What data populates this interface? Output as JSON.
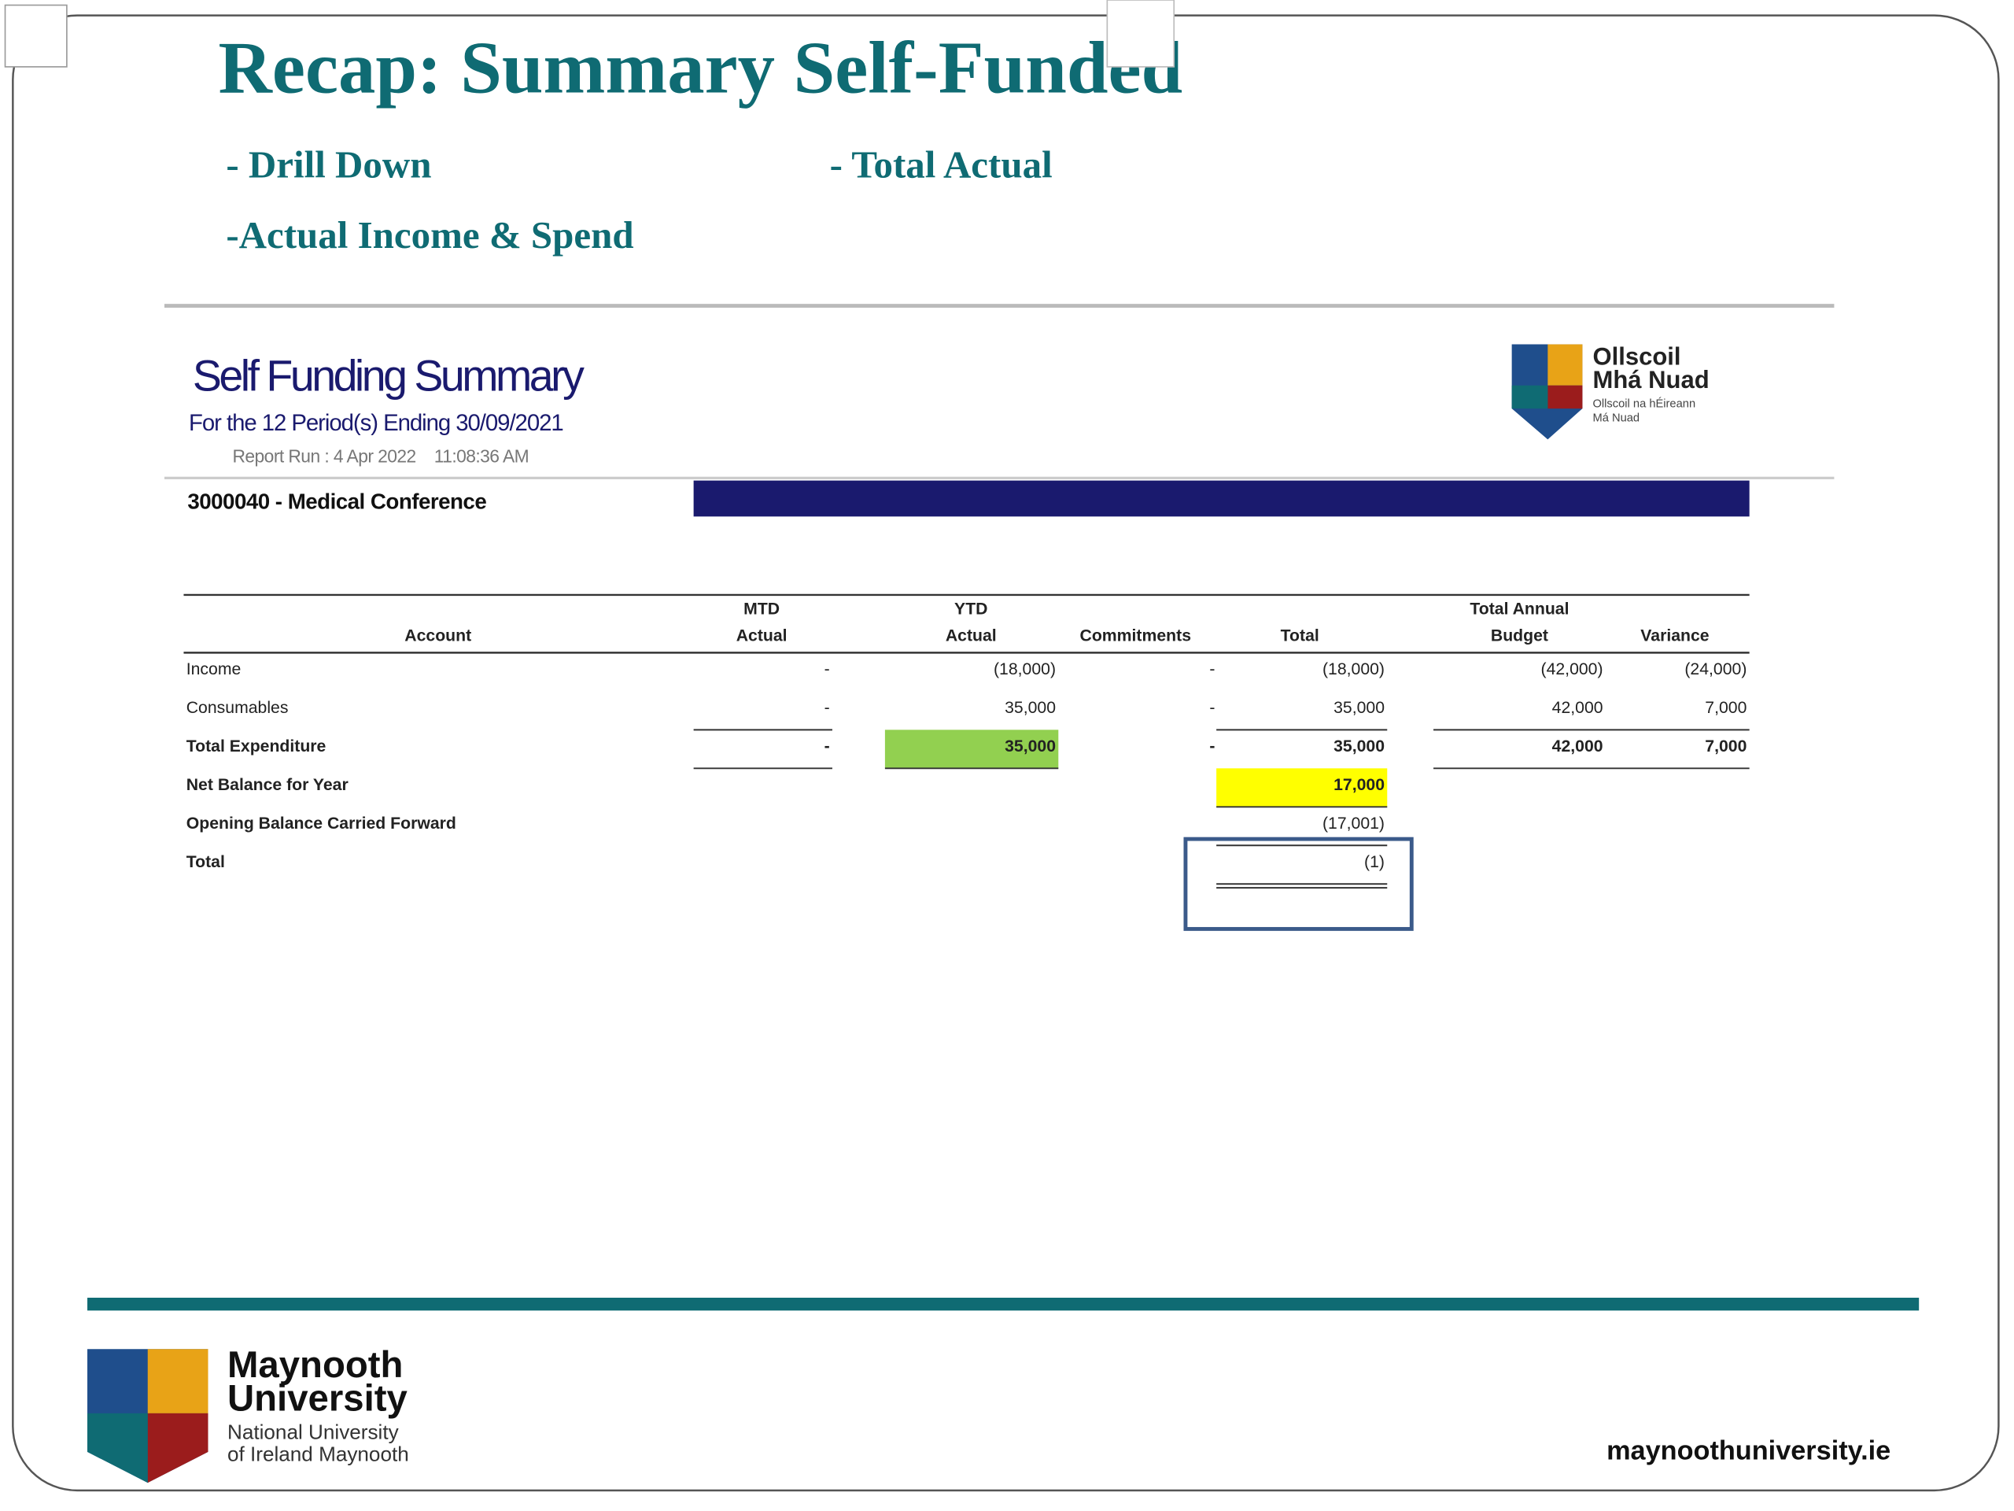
{
  "slide": {
    "title": "Recap: Summary Self-Funded",
    "bullets": [
      "- Drill Down",
      "- Total Actual",
      "-Actual Income & Spend"
    ]
  },
  "report": {
    "title": "Self Funding Summary",
    "subtitle": "For the 12 Period(s) Ending 30/09/2021",
    "report_run": "Report Run : 4 Apr 2022    11:08:36 AM",
    "logo": {
      "name_line1": "Ollscoil",
      "name_line2": "Mhá Nuad",
      "sub_line1": "Ollscoil na hÉireann",
      "sub_line2": "Má Nuad"
    },
    "project": "3000040 - Medical Conference"
  },
  "table": {
    "headers": {
      "account": [
        "Account"
      ],
      "mtd_actual": [
        "MTD",
        "Actual"
      ],
      "ytd_actual": [
        "YTD",
        "Actual"
      ],
      "commitments": [
        "Commitments"
      ],
      "total": [
        "Total"
      ],
      "total_annual_budget": [
        "Total Annual",
        "Budget"
      ],
      "variance": [
        "Variance"
      ]
    },
    "rows": [
      {
        "account": "Income",
        "mtd_actual": "-",
        "ytd_actual": "(18,000)",
        "commitments": "-",
        "total": "(18,000)",
        "total_annual_budget": "(42,000)",
        "variance": "(24,000)"
      },
      {
        "account": "Consumables",
        "mtd_actual": "-",
        "ytd_actual": "35,000",
        "commitments": "-",
        "total": "35,000",
        "total_annual_budget": "42,000",
        "variance": "7,000"
      },
      {
        "account": "Total Expenditure",
        "mtd_actual": "-",
        "ytd_actual": "35,000",
        "commitments": "-",
        "total": "35,000",
        "total_annual_budget": "42,000",
        "variance": "7,000"
      },
      {
        "account": "Net Balance for Year",
        "total": "17,000"
      },
      {
        "account": "Opening Balance Carried Forward",
        "total": "(17,001)"
      },
      {
        "account": "Total",
        "total": "(1)"
      }
    ]
  },
  "footer": {
    "logo": {
      "line1": "Maynooth",
      "line2": "University",
      "line3": "National University",
      "line4": "of Ireland Maynooth"
    },
    "url": "maynoothuniversity.ie"
  }
}
